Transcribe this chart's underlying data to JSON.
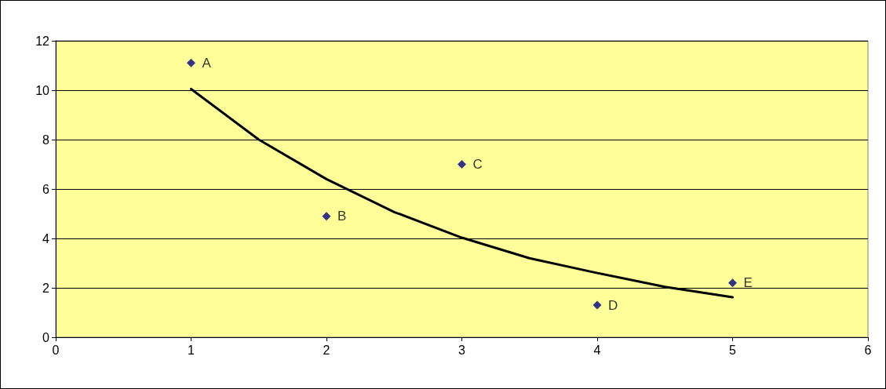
{
  "chart_data": {
    "type": "scatter",
    "series": [
      {
        "color": "#000080",
        "marker": "diamond",
        "x": [
          1,
          2,
          3,
          4,
          5
        ],
        "values": [
          11.1,
          4.9,
          7.0,
          1.3,
          2.2
        ]
      },
      {
        "type": "line",
        "color": "#000000",
        "marker": "none",
        "line_style": "solid",
        "x": [
          1,
          1.5,
          2,
          2.5,
          3,
          3.5,
          4,
          4.5,
          5
        ],
        "values": [
          10.05,
          8.0,
          6.4,
          5.07,
          4.03,
          3.2,
          2.6,
          2.04,
          1.62
        ]
      }
    ],
    "annotations": [
      {
        "text": "A",
        "x": 1,
        "y": 11.1
      },
      {
        "text": "B",
        "x": 2,
        "y": 4.9
      },
      {
        "text": "C",
        "x": 3,
        "y": 7.0
      },
      {
        "text": "D",
        "x": 4,
        "y": 1.3
      },
      {
        "text": "E",
        "x": 5,
        "y": 2.2
      }
    ],
    "xlim": [
      0,
      6
    ],
    "xticks": [
      0,
      1,
      2,
      3,
      4,
      5,
      6
    ],
    "ylim": [
      0,
      12
    ],
    "yticks": [
      0,
      2,
      4,
      6,
      8,
      10,
      12
    ],
    "grid": "y"
  }
}
